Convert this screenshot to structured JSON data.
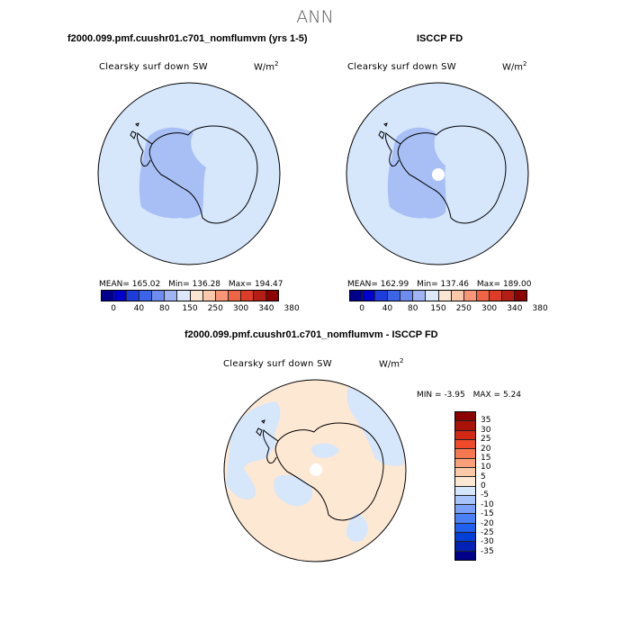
{
  "page_title": "ANN",
  "colors": {
    "abs_scale": [
      "#00008b",
      "#0000cd",
      "#1e3cdc",
      "#3c64e6",
      "#6e8cf0",
      "#a0b4f5",
      "#dce8fa",
      "#fae4d2",
      "#fac8aa",
      "#fa9678",
      "#f06446",
      "#dc3c28",
      "#b41e14",
      "#8b0000"
    ],
    "diff_scale": [
      "#00008b",
      "#0022b4",
      "#0040d8",
      "#2060f0",
      "#4a80f5",
      "#7aa0f8",
      "#a8c4fa",
      "#d6e6fb",
      "#fde8d4",
      "#fbc8a8",
      "#f9a07a",
      "#f67850",
      "#f04a2a",
      "#d22814",
      "#aa1208",
      "#8b0000"
    ],
    "map_light_blue": "#d6e6fb",
    "map_mid_blue": "#a8bff5",
    "map_peach": "#fde8d4",
    "coastline": "#000000"
  },
  "panels": {
    "model": {
      "title": "f2000.099.pmf.cuushr01.c701_nomflumvm (yrs 1-5)",
      "variable": "Clearsky surf down SW",
      "units": "W/m",
      "units_sup": "2",
      "mean_label": "MEAN=",
      "mean": "165.02",
      "min_label": "Min=",
      "min": "136.28",
      "max_label": "Max=",
      "max": "194.47"
    },
    "obs": {
      "title": "ISCCP FD",
      "variable": "Clearsky surf down SW",
      "units": "W/m",
      "units_sup": "2",
      "mean_label": "MEAN=",
      "mean": "162.99",
      "min_label": "Min=",
      "min": "137.46",
      "max_label": "Max=",
      "max": "189.00"
    },
    "diff": {
      "title": "f2000.099.pmf.cuushr01.c701_nomflumvm - ISCCP FD",
      "variable": "Clearsky surf down SW",
      "units": "W/m",
      "units_sup": "2",
      "min_label": "MIN =",
      "min": "-3.95",
      "max_label": "MAX =",
      "max": "5.24"
    }
  },
  "chart_data": [
    {
      "type": "heatmap",
      "title": "f2000.099.pmf.cuushr01.c701_nomflumvm (yrs 1-5)",
      "variable": "Clearsky surf down SW",
      "units": "W/m^2",
      "projection": "south polar stereographic",
      "stats": {
        "mean": 165.02,
        "min": 136.28,
        "max": 194.47
      },
      "colorbar_ticks": [
        "0",
        "40",
        "80",
        "150",
        "250",
        "300",
        "340",
        "380"
      ]
    },
    {
      "type": "heatmap",
      "title": "ISCCP FD",
      "variable": "Clearsky surf down SW",
      "units": "W/m^2",
      "projection": "south polar stereographic",
      "stats": {
        "mean": 162.99,
        "min": 137.46,
        "max": 189.0
      },
      "colorbar_ticks": [
        "0",
        "40",
        "80",
        "150",
        "250",
        "300",
        "340",
        "380"
      ]
    },
    {
      "type": "heatmap",
      "title": "f2000.099.pmf.cuushr01.c701_nomflumvm - ISCCP FD",
      "variable": "Clearsky surf down SW",
      "units": "W/m^2",
      "projection": "south polar stereographic",
      "stats": {
        "min": -3.95,
        "max": 5.24
      },
      "colorbar_ticks": [
        "35",
        "30",
        "25",
        "20",
        "15",
        "10",
        "5",
        "0",
        "-5",
        "-10",
        "-15",
        "-20",
        "-25",
        "-30",
        "-35"
      ]
    }
  ]
}
